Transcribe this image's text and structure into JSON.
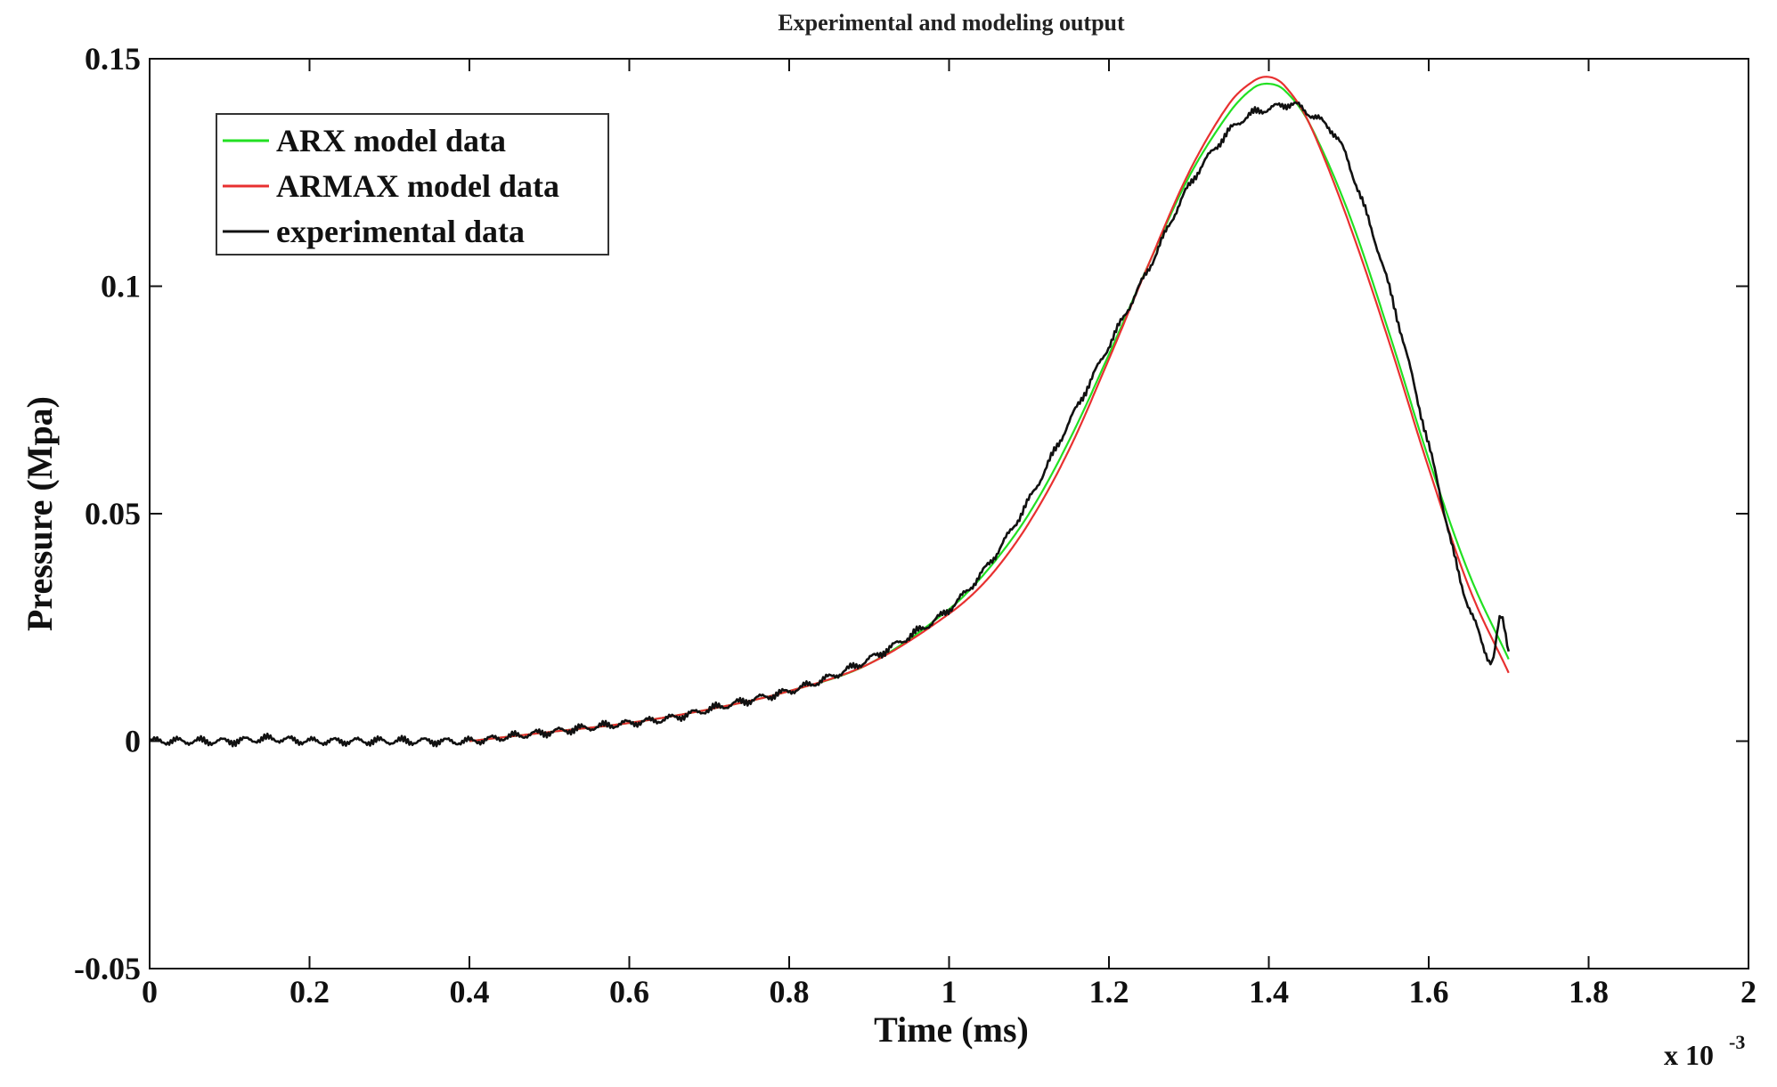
{
  "chart_data": {
    "type": "line",
    "title": "Experimental and modeling output",
    "xlabel": "Time (ms)",
    "ylabel": "Pressure (Mpa)",
    "x_multiplier_label": "x 10",
    "x_multiplier_exponent": "-3",
    "xlim": [
      0,
      2
    ],
    "ylim": [
      -0.05,
      0.15
    ],
    "xticks": [
      0,
      0.2,
      0.4,
      0.6,
      0.8,
      1,
      1.2,
      1.4,
      1.6,
      1.8,
      2
    ],
    "xtick_labels": [
      "0",
      "0.2",
      "0.4",
      "0.6",
      "0.8",
      "1",
      "1.2",
      "1.4",
      "1.6",
      "1.8",
      "2"
    ],
    "yticks": [
      -0.05,
      0,
      0.05,
      0.1,
      0.15
    ],
    "ytick_labels": [
      "-0.05",
      "0",
      "0.05",
      "0.1",
      "0.15"
    ],
    "grid": false,
    "legend_position": "top-left",
    "series": [
      {
        "name": "ARX model data",
        "color": "#22e022",
        "x": [
          0.4,
          0.5,
          0.6,
          0.7,
          0.8,
          0.9,
          1.0,
          1.05,
          1.1,
          1.15,
          1.2,
          1.25,
          1.3,
          1.35,
          1.38,
          1.4,
          1.42,
          1.45,
          1.5,
          1.55,
          1.6,
          1.65,
          1.7
        ],
        "y": [
          0.0,
          0.002,
          0.004,
          0.007,
          0.011,
          0.017,
          0.029,
          0.038,
          0.05,
          0.066,
          0.085,
          0.105,
          0.124,
          0.138,
          0.1435,
          0.1445,
          0.143,
          0.136,
          0.116,
          0.09,
          0.062,
          0.037,
          0.018
        ]
      },
      {
        "name": "ARMAX model data",
        "color": "#e83030",
        "x": [
          0.4,
          0.5,
          0.6,
          0.7,
          0.8,
          0.9,
          1.0,
          1.05,
          1.1,
          1.15,
          1.2,
          1.25,
          1.3,
          1.35,
          1.38,
          1.4,
          1.42,
          1.45,
          1.5,
          1.55,
          1.6,
          1.65,
          1.7
        ],
        "y": [
          0.0,
          0.002,
          0.004,
          0.007,
          0.011,
          0.017,
          0.028,
          0.036,
          0.048,
          0.064,
          0.084,
          0.105,
          0.125,
          0.14,
          0.145,
          0.146,
          0.144,
          0.136,
          0.114,
          0.088,
          0.06,
          0.034,
          0.015
        ]
      },
      {
        "name": "experimental data",
        "color": "#111111",
        "x": [
          0.0,
          0.05,
          0.1,
          0.15,
          0.2,
          0.25,
          0.3,
          0.35,
          0.4,
          0.45,
          0.5,
          0.55,
          0.6,
          0.65,
          0.7,
          0.75,
          0.8,
          0.85,
          0.9,
          0.95,
          1.0,
          1.05,
          1.1,
          1.15,
          1.2,
          1.25,
          1.3,
          1.35,
          1.38,
          1.4,
          1.43,
          1.45,
          1.48,
          1.5,
          1.55,
          1.6,
          1.62,
          1.64,
          1.66,
          1.67,
          1.68,
          1.69,
          1.7
        ],
        "y": [
          0.0,
          0.0,
          0.0,
          0.0005,
          0.0,
          0.0,
          0.0,
          0.0,
          0.0,
          0.001,
          0.002,
          0.003,
          0.004,
          0.005,
          0.007,
          0.009,
          0.011,
          0.014,
          0.018,
          0.023,
          0.029,
          0.039,
          0.053,
          0.07,
          0.087,
          0.104,
          0.122,
          0.134,
          0.138,
          0.139,
          0.14,
          0.138,
          0.134,
          0.127,
          0.1,
          0.065,
          0.05,
          0.035,
          0.025,
          0.02,
          0.018,
          0.027,
          0.02
        ]
      }
    ]
  }
}
